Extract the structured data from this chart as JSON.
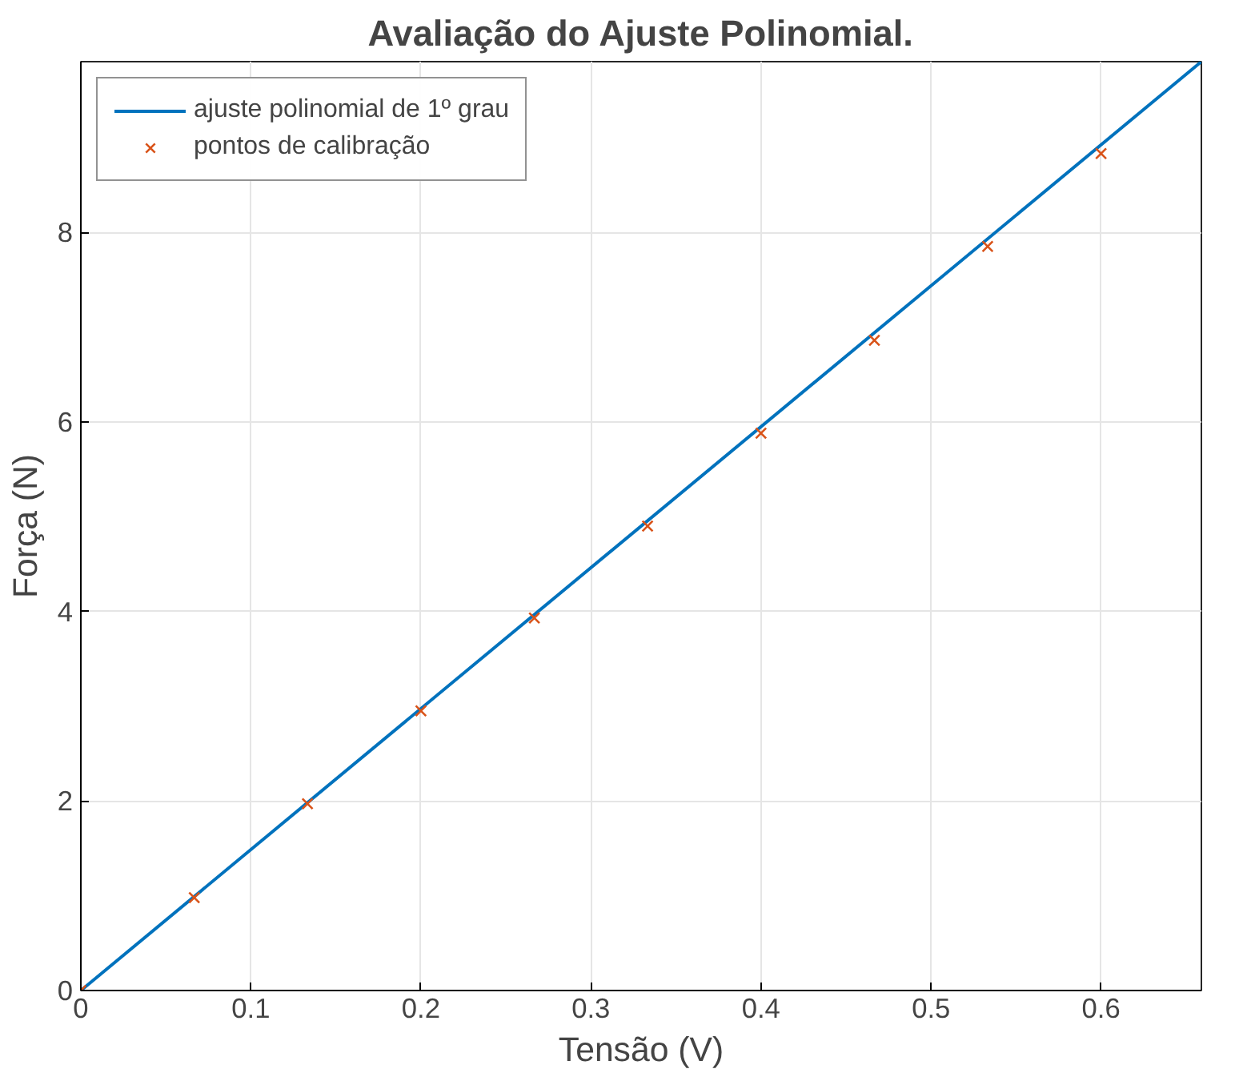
{
  "chart_data": {
    "type": "line",
    "title": "Avaliação do Ajuste Polinomial.",
    "xlabel": "Tensão (V)",
    "ylabel": "Força (N)",
    "xlim": [
      0,
      0.659
    ],
    "ylim": [
      0,
      9.8
    ],
    "xticks": [
      0,
      0.1,
      0.2,
      0.3,
      0.4,
      0.5,
      0.6
    ],
    "yticks": [
      0,
      2,
      4,
      6,
      8
    ],
    "grid": true,
    "legend": "top left",
    "series": [
      {
        "name": "ajuste polinomial de 1º grau",
        "color": "#0072bd",
        "x": [
          0,
          0.659
        ],
        "values": [
          0,
          9.8
        ],
        "marker": "none",
        "line_style": "solid"
      },
      {
        "name": "pontos de calibração",
        "type": "scatter",
        "color": "#d95319",
        "x": [
          0,
          0.0667,
          0.1333,
          0.2,
          0.2667,
          0.3333,
          0.4,
          0.4667,
          0.5333,
          0.6
        ],
        "values": [
          0,
          0.98,
          1.97,
          2.95,
          3.93,
          4.9,
          5.88,
          6.86,
          7.85,
          8.83
        ],
        "marker": "cross"
      }
    ]
  }
}
